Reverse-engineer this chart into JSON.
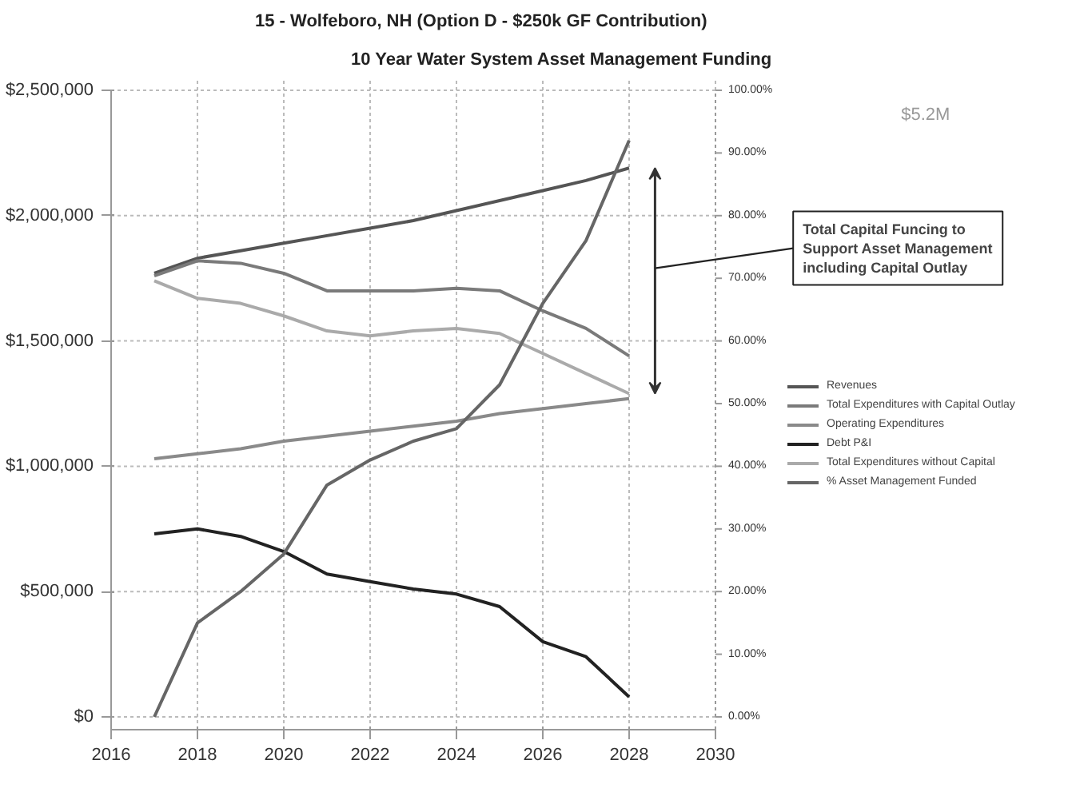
{
  "chart_data": {
    "type": "line",
    "title": "15 - Wolfeboro, NH (Option D - $250k GF Contribution)",
    "subtitle": "10 Year Water System Asset Management Funding",
    "x": [
      2017,
      2018,
      2019,
      2020,
      2021,
      2022,
      2023,
      2024,
      2025,
      2026,
      2027,
      2028
    ],
    "series": [
      {
        "name": "Revenues",
        "color": "#555555",
        "values": [
          1770000,
          1830000,
          1860000,
          1890000,
          1920000,
          1950000,
          1980000,
          2020000,
          2060000,
          2100000,
          2140000,
          2190000
        ]
      },
      {
        "name": "Total Expenditures with Capital Outlay",
        "color": "#7a7a7a",
        "values": [
          1760000,
          1820000,
          1810000,
          1770000,
          1700000,
          1700000,
          1700000,
          1710000,
          1700000,
          1620000,
          1550000,
          1440000
        ]
      },
      {
        "name": "Operating Expenditures",
        "color": "#8a8a8a",
        "values": [
          1030000,
          1050000,
          1070000,
          1100000,
          1120000,
          1140000,
          1160000,
          1180000,
          1210000,
          1230000,
          1250000,
          1270000
        ]
      },
      {
        "name": "Debt P&I",
        "color": "#222222",
        "values": [
          730000,
          750000,
          720000,
          660000,
          570000,
          540000,
          510000,
          490000,
          440000,
          300000,
          240000,
          80000
        ]
      },
      {
        "name": "Total Expenditures without Capital",
        "color": "#aaaaaa",
        "values": [
          1740000,
          1670000,
          1650000,
          1600000,
          1540000,
          1520000,
          1540000,
          1550000,
          1530000,
          1450000,
          1370000,
          1290000
        ]
      },
      {
        "name": "% Asset Management Funded",
        "color": "#666666",
        "axis": "y2",
        "values": [
          0,
          15,
          20,
          26,
          37,
          41,
          44,
          46,
          53,
          66,
          76,
          92
        ]
      }
    ],
    "xlim": [
      2016,
      2030
    ],
    "xticks": [
      2016,
      2018,
      2020,
      2022,
      2024,
      2026,
      2028,
      2030
    ],
    "ylim": [
      0,
      2500000
    ],
    "yticks": [
      {
        "value": 0,
        "label": "$0"
      },
      {
        "value": 500000,
        "label": "$500,000"
      },
      {
        "value": 1000000,
        "label": "$1,000,000"
      },
      {
        "value": 1500000,
        "label": "$1,500,000"
      },
      {
        "value": 2000000,
        "label": "$2,000,000"
      },
      {
        "value": 2500000,
        "label": "$2,500,000"
      }
    ],
    "y2lim": [
      0,
      100
    ],
    "y2ticks": [
      {
        "value": 0,
        "label": "0.00%"
      },
      {
        "value": 10,
        "label": "10.00%"
      },
      {
        "value": 20,
        "label": "20.00%"
      },
      {
        "value": 30,
        "label": "30.00%"
      },
      {
        "value": 40,
        "label": "40.00%"
      },
      {
        "value": 50,
        "label": "50.00%"
      },
      {
        "value": 60,
        "label": "60.00%"
      },
      {
        "value": 70,
        "label": "70.00%"
      },
      {
        "value": 80,
        "label": "80.00%"
      },
      {
        "value": 90,
        "label": "90.00%"
      },
      {
        "value": 100,
        "label": "100.00%"
      }
    ],
    "annotations": [
      "Total Capital Funcing to Support Asset Management including Capital Outlay",
      "$5.2M"
    ],
    "grid": true,
    "legend": "right"
  }
}
